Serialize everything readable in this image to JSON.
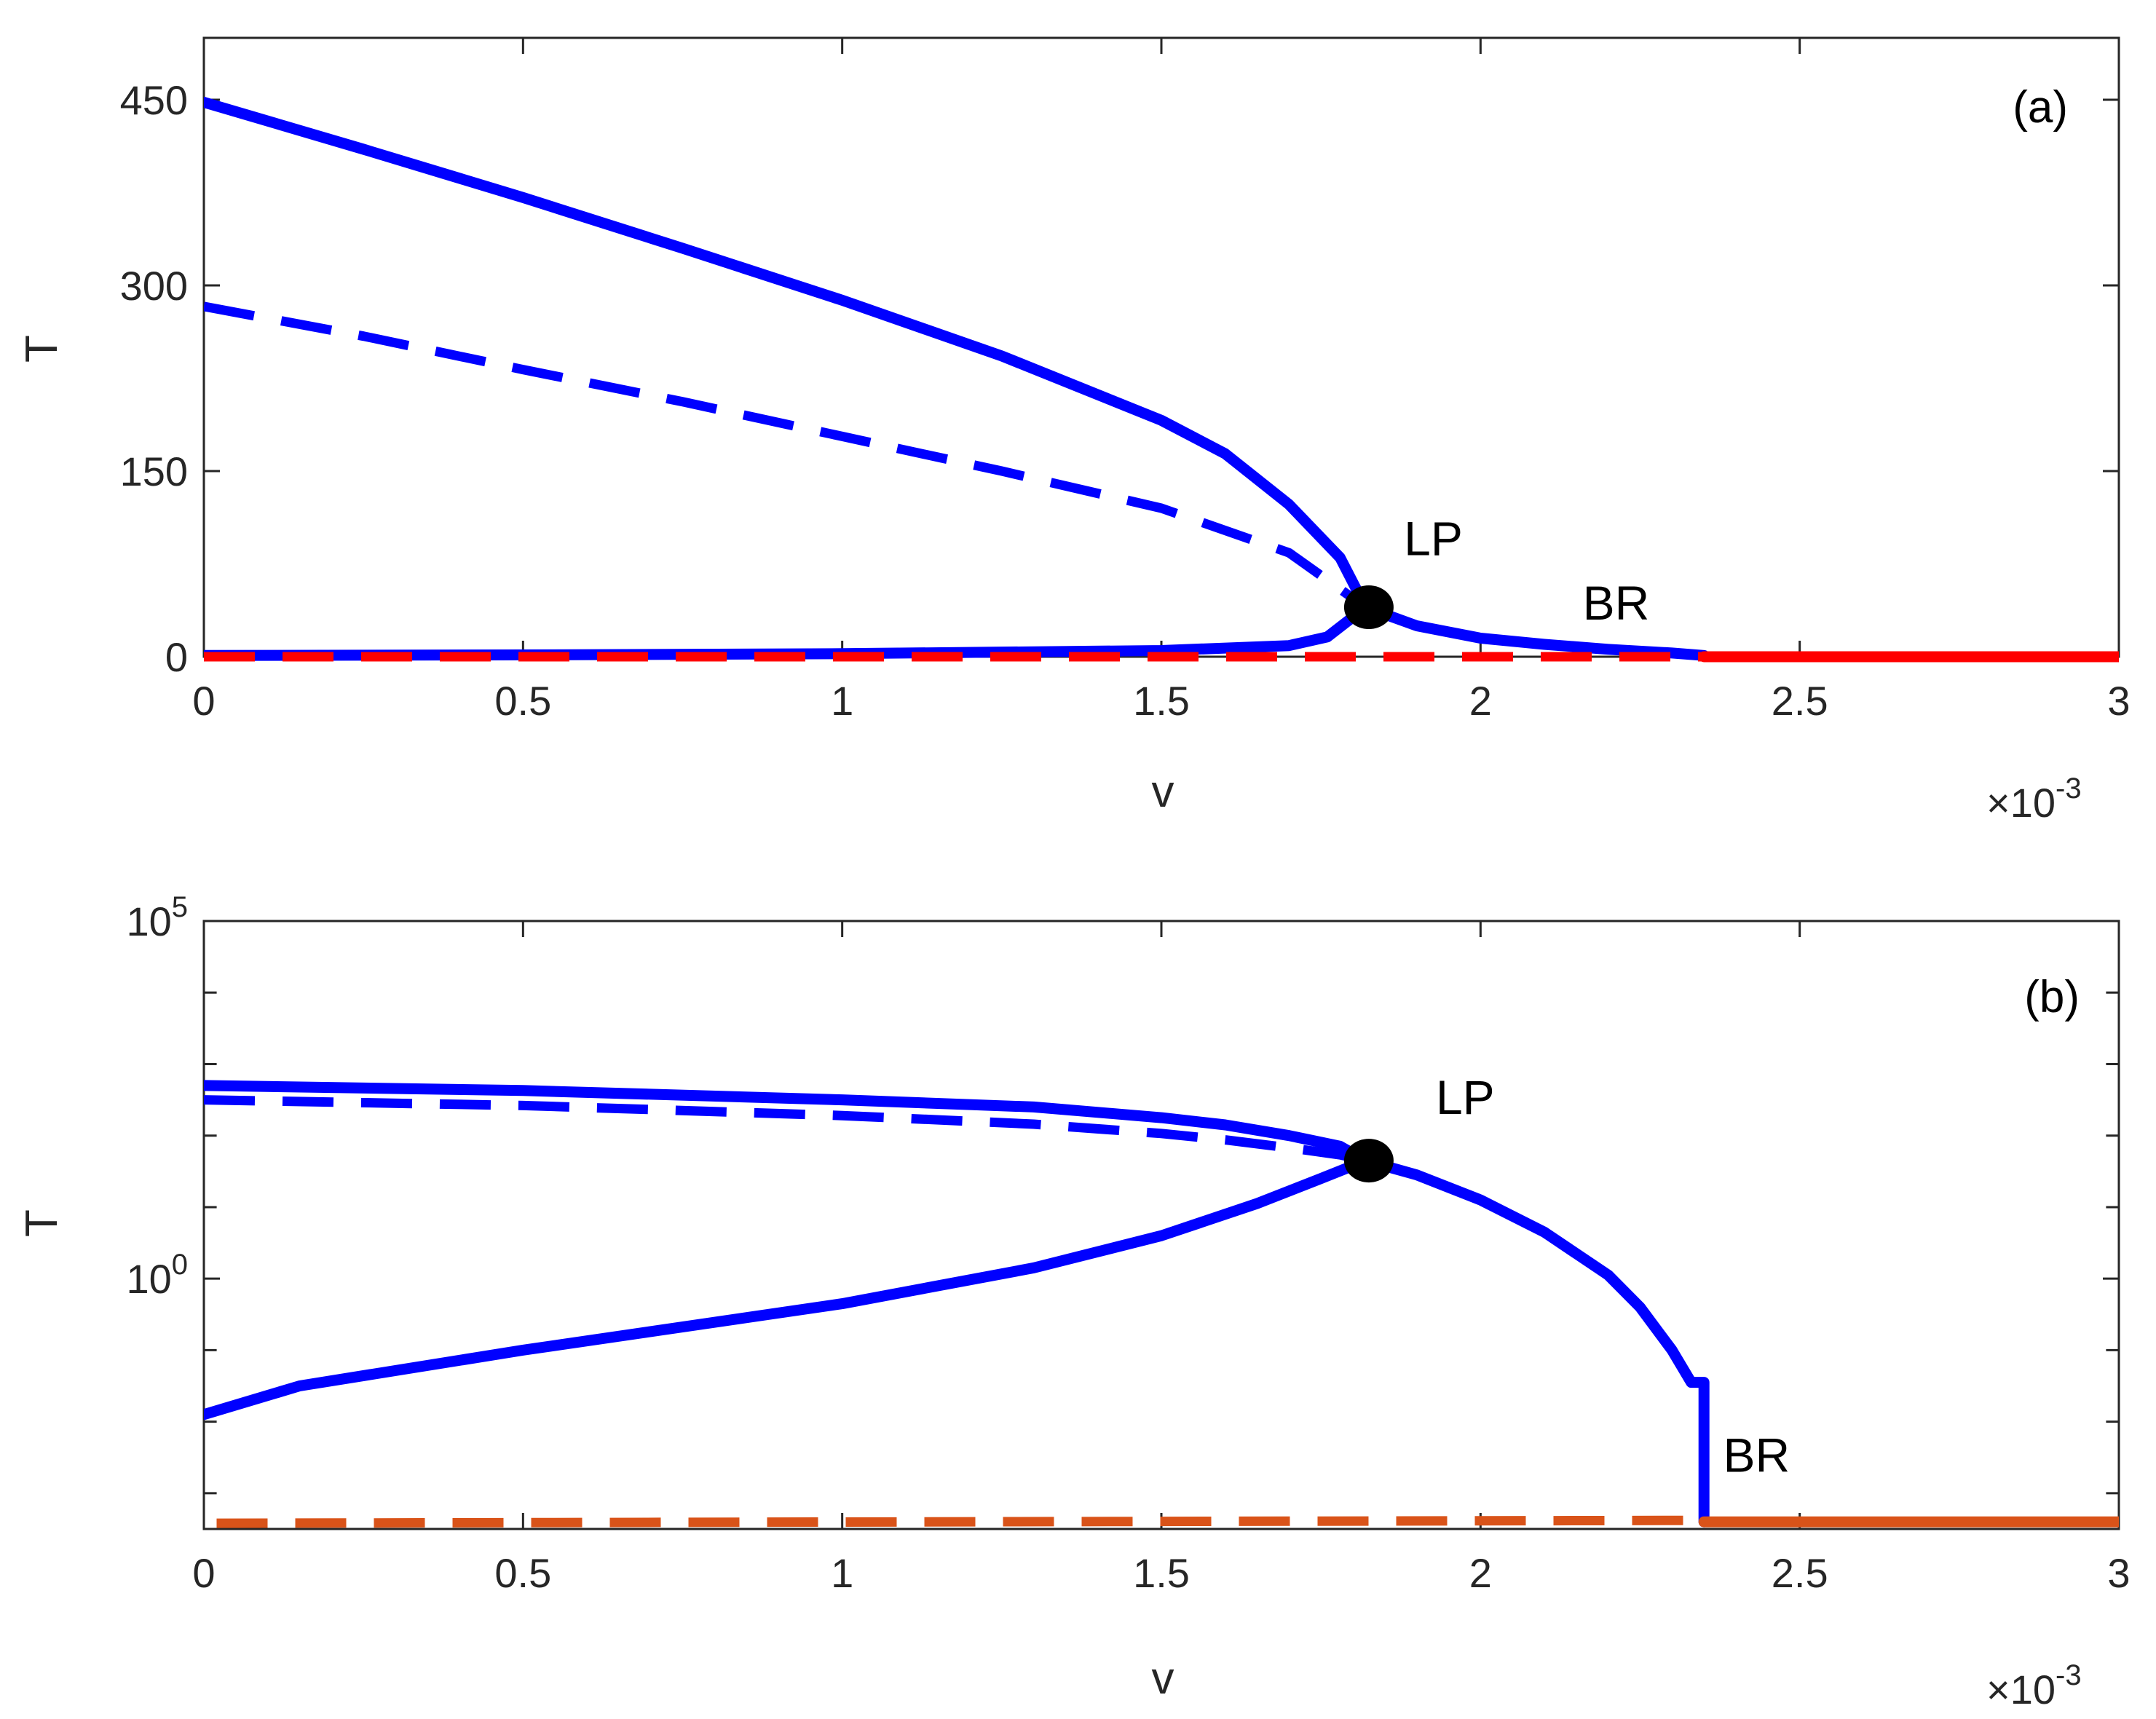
{
  "chart_data": [
    {
      "type": "line",
      "panel_label": "(a)",
      "xlabel": "v",
      "ylabel": "T",
      "x_multiplier_base": "10",
      "x_multiplier_exp": "-3",
      "x_multiplier_sign": "×",
      "xlim": [
        0,
        3
      ],
      "ylim": [
        0,
        500
      ],
      "yscale": "linear",
      "xticks": [
        0,
        0.5,
        1,
        1.5,
        2,
        2.5,
        3
      ],
      "xtick_labels": [
        "0",
        "0.5",
        "1",
        "1.5",
        "2",
        "2.5",
        "3"
      ],
      "yticks": [
        0,
        150,
        300,
        450
      ],
      "ytick_labels": [
        "0",
        "150",
        "300",
        "450"
      ],
      "grid": false,
      "series": [
        {
          "style": "solid",
          "color": "#0000ff",
          "x": [
            0,
            0.25,
            0.5,
            0.75,
            1.0,
            1.25,
            1.5,
            1.6,
            1.7,
            1.78,
            1.82
          ],
          "y": [
            448,
            410,
            371,
            330,
            288,
            243,
            191,
            164,
            123,
            80,
            40
          ]
        },
        {
          "style": "dashed",
          "color": "#0000ff",
          "x": [
            0,
            0.25,
            0.5,
            0.75,
            1.0,
            1.25,
            1.5,
            1.7,
            1.82
          ],
          "y": [
            283,
            259,
            232,
            206,
            178,
            150,
            120,
            84,
            40
          ]
        },
        {
          "style": "solid",
          "color": "#0000ff",
          "x": [
            0,
            0.5,
            1.0,
            1.5,
            1.7,
            1.76,
            1.82,
            1.9,
            2.0,
            2.1,
            2.2,
            2.3,
            2.35
          ],
          "y": [
            1,
            1.5,
            2.5,
            5,
            9,
            16,
            40,
            25,
            15,
            10,
            6,
            3,
            1
          ]
        },
        {
          "style": "dashed",
          "color": "#ff0000",
          "x": [
            0,
            2.35
          ],
          "y": [
            0,
            0
          ]
        },
        {
          "style": "solid",
          "color": "#ff0000",
          "x": [
            2.35,
            3.0
          ],
          "y": [
            0,
            0
          ]
        }
      ],
      "points": [
        {
          "label": "LP",
          "x": 1.825,
          "y": 40
        }
      ],
      "annotations": [
        {
          "text": "LP",
          "x": 1.88,
          "y": 82
        },
        {
          "text": "BR",
          "x": 2.16,
          "y": 30
        }
      ]
    },
    {
      "type": "line",
      "panel_label": "(b)",
      "xlabel": "v",
      "ylabel": "T",
      "x_multiplier_base": "10",
      "x_multiplier_exp": "-3",
      "x_multiplier_sign": "×",
      "xlim": [
        0,
        3
      ],
      "ylim": [
        -3.5,
        5
      ],
      "yscale": "log",
      "xticks": [
        0,
        0.5,
        1,
        1.5,
        2,
        2.5,
        3
      ],
      "xtick_labels": [
        "0",
        "0.5",
        "1",
        "1.5",
        "2",
        "2.5",
        "3"
      ],
      "ytick_labels": [
        {
          "base": "10",
          "exp": "0"
        },
        {
          "base": "10",
          "exp": "5"
        }
      ],
      "yticks_major": [
        0,
        5
      ],
      "yticks_minor": [
        -3,
        -2,
        -1,
        1,
        2,
        3,
        4
      ],
      "grid": false,
      "series": [
        {
          "style": "solid",
          "color": "#0000ff",
          "x": [
            0,
            0.5,
            1.0,
            1.3,
            1.5,
            1.6,
            1.7,
            1.78,
            1.82
          ],
          "y_log10": [
            2.7,
            2.63,
            2.5,
            2.4,
            2.25,
            2.15,
            2.0,
            1.85,
            1.65
          ]
        },
        {
          "style": "dashed",
          "color": "#0000ff",
          "x": [
            0,
            0.5,
            1.0,
            1.3,
            1.5,
            1.6,
            1.7,
            1.78,
            1.82
          ],
          "y_log10": [
            2.5,
            2.42,
            2.28,
            2.16,
            2.03,
            1.94,
            1.83,
            1.73,
            1.65
          ]
        },
        {
          "style": "solid",
          "color": "#0000ff",
          "x": [
            0,
            0.15,
            0.5,
            1.0,
            1.3,
            1.5,
            1.65,
            1.75,
            1.82
          ],
          "y_log10": [
            -1.9,
            -1.5,
            -1.0,
            -0.35,
            0.15,
            0.6,
            1.05,
            1.4,
            1.65
          ]
        },
        {
          "style": "solid",
          "color": "#0000ff",
          "x": [
            1.82,
            1.9,
            2.0,
            2.1,
            2.2,
            2.25,
            2.3,
            2.33,
            2.35,
            2.35
          ],
          "y_log10": [
            1.65,
            1.45,
            1.1,
            0.65,
            0.05,
            -0.4,
            -1.0,
            -1.45,
            -1.45,
            -3.4
          ]
        },
        {
          "style": "dashed",
          "color": "#d95319",
          "x": [
            0.02,
            2.35
          ],
          "y_log10": [
            -3.42,
            -3.38
          ]
        },
        {
          "style": "solid",
          "color": "#d95319",
          "x": [
            2.35,
            3.0
          ],
          "y_log10": [
            -3.4,
            -3.4
          ]
        }
      ],
      "points": [
        {
          "label": "LP",
          "x": 1.825,
          "y_log10": 1.65
        }
      ],
      "annotations": [
        {
          "text": "LP",
          "x": 1.93,
          "y_log10": 2.3
        },
        {
          "text": "BR",
          "x": 2.38,
          "y_log10": -2.7
        }
      ]
    }
  ]
}
